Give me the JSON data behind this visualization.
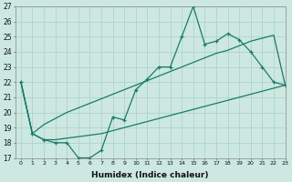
{
  "xlabel": "Humidex (Indice chaleur)",
  "x_data": [
    0,
    1,
    2,
    3,
    4,
    5,
    6,
    7,
    8,
    9,
    10,
    11,
    12,
    13,
    14,
    15,
    16,
    17,
    18,
    19,
    20,
    21,
    22,
    23
  ],
  "main_line": [
    22,
    18.6,
    18.2,
    18.0,
    18.0,
    17.0,
    17.0,
    17.5,
    19.7,
    19.5,
    21.5,
    22.2,
    23.0,
    23.0,
    25.0,
    27.0,
    24.5,
    24.7,
    25.2,
    24.8,
    24.0,
    23.0,
    22.0,
    21.8
  ],
  "upper_line": [
    22.0,
    18.6,
    19.2,
    19.6,
    20.0,
    20.3,
    20.6,
    20.9,
    21.2,
    21.5,
    21.8,
    22.1,
    22.4,
    22.7,
    23.0,
    23.3,
    23.6,
    23.9,
    24.1,
    24.4,
    24.7,
    24.9,
    25.1,
    21.8
  ],
  "lower_line": [
    22.0,
    18.6,
    18.2,
    18.2,
    18.3,
    18.4,
    18.5,
    18.6,
    18.8,
    19.0,
    19.2,
    19.4,
    19.6,
    19.8,
    20.0,
    20.2,
    20.4,
    20.6,
    20.8,
    21.0,
    21.2,
    21.4,
    21.6,
    21.8
  ],
  "line_color": "#1a7a6a",
  "bg_color": "#cce8e0",
  "grid_color": "#aacfc8",
  "ylim": [
    17,
    27
  ],
  "xlim": [
    -0.5,
    23
  ],
  "yticks": [
    17,
    18,
    19,
    20,
    21,
    22,
    23,
    24,
    25,
    26,
    27
  ],
  "xticks": [
    0,
    1,
    2,
    3,
    4,
    5,
    6,
    7,
    8,
    9,
    10,
    11,
    12,
    13,
    14,
    15,
    16,
    17,
    18,
    19,
    20,
    21,
    22,
    23
  ]
}
